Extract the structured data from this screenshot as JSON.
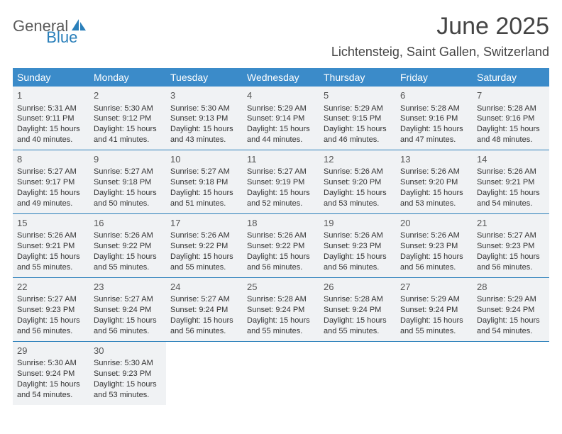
{
  "logo": {
    "t1": "General",
    "t2": "Blue"
  },
  "title": "June 2025",
  "location": "Lichtensteig, Saint Gallen, Switzerland",
  "colors": {
    "header_bg": "#3b8bc9",
    "cell_bg": "#f0f2f4",
    "rule": "#2a7fba",
    "logo_blue": "#2a7fba",
    "text_gray": "#5a5a5a"
  },
  "dow": [
    "Sunday",
    "Monday",
    "Tuesday",
    "Wednesday",
    "Thursday",
    "Friday",
    "Saturday"
  ],
  "weeks": [
    [
      {
        "n": "1",
        "sr": "Sunrise: 5:31 AM",
        "ss": "Sunset: 9:11 PM",
        "d1": "Daylight: 15 hours",
        "d2": "and 40 minutes."
      },
      {
        "n": "2",
        "sr": "Sunrise: 5:30 AM",
        "ss": "Sunset: 9:12 PM",
        "d1": "Daylight: 15 hours",
        "d2": "and 41 minutes."
      },
      {
        "n": "3",
        "sr": "Sunrise: 5:30 AM",
        "ss": "Sunset: 9:13 PM",
        "d1": "Daylight: 15 hours",
        "d2": "and 43 minutes."
      },
      {
        "n": "4",
        "sr": "Sunrise: 5:29 AM",
        "ss": "Sunset: 9:14 PM",
        "d1": "Daylight: 15 hours",
        "d2": "and 44 minutes."
      },
      {
        "n": "5",
        "sr": "Sunrise: 5:29 AM",
        "ss": "Sunset: 9:15 PM",
        "d1": "Daylight: 15 hours",
        "d2": "and 46 minutes."
      },
      {
        "n": "6",
        "sr": "Sunrise: 5:28 AM",
        "ss": "Sunset: 9:16 PM",
        "d1": "Daylight: 15 hours",
        "d2": "and 47 minutes."
      },
      {
        "n": "7",
        "sr": "Sunrise: 5:28 AM",
        "ss": "Sunset: 9:16 PM",
        "d1": "Daylight: 15 hours",
        "d2": "and 48 minutes."
      }
    ],
    [
      {
        "n": "8",
        "sr": "Sunrise: 5:27 AM",
        "ss": "Sunset: 9:17 PM",
        "d1": "Daylight: 15 hours",
        "d2": "and 49 minutes."
      },
      {
        "n": "9",
        "sr": "Sunrise: 5:27 AM",
        "ss": "Sunset: 9:18 PM",
        "d1": "Daylight: 15 hours",
        "d2": "and 50 minutes."
      },
      {
        "n": "10",
        "sr": "Sunrise: 5:27 AM",
        "ss": "Sunset: 9:18 PM",
        "d1": "Daylight: 15 hours",
        "d2": "and 51 minutes."
      },
      {
        "n": "11",
        "sr": "Sunrise: 5:27 AM",
        "ss": "Sunset: 9:19 PM",
        "d1": "Daylight: 15 hours",
        "d2": "and 52 minutes."
      },
      {
        "n": "12",
        "sr": "Sunrise: 5:26 AM",
        "ss": "Sunset: 9:20 PM",
        "d1": "Daylight: 15 hours",
        "d2": "and 53 minutes."
      },
      {
        "n": "13",
        "sr": "Sunrise: 5:26 AM",
        "ss": "Sunset: 9:20 PM",
        "d1": "Daylight: 15 hours",
        "d2": "and 53 minutes."
      },
      {
        "n": "14",
        "sr": "Sunrise: 5:26 AM",
        "ss": "Sunset: 9:21 PM",
        "d1": "Daylight: 15 hours",
        "d2": "and 54 minutes."
      }
    ],
    [
      {
        "n": "15",
        "sr": "Sunrise: 5:26 AM",
        "ss": "Sunset: 9:21 PM",
        "d1": "Daylight: 15 hours",
        "d2": "and 55 minutes."
      },
      {
        "n": "16",
        "sr": "Sunrise: 5:26 AM",
        "ss": "Sunset: 9:22 PM",
        "d1": "Daylight: 15 hours",
        "d2": "and 55 minutes."
      },
      {
        "n": "17",
        "sr": "Sunrise: 5:26 AM",
        "ss": "Sunset: 9:22 PM",
        "d1": "Daylight: 15 hours",
        "d2": "and 55 minutes."
      },
      {
        "n": "18",
        "sr": "Sunrise: 5:26 AM",
        "ss": "Sunset: 9:22 PM",
        "d1": "Daylight: 15 hours",
        "d2": "and 56 minutes."
      },
      {
        "n": "19",
        "sr": "Sunrise: 5:26 AM",
        "ss": "Sunset: 9:23 PM",
        "d1": "Daylight: 15 hours",
        "d2": "and 56 minutes."
      },
      {
        "n": "20",
        "sr": "Sunrise: 5:26 AM",
        "ss": "Sunset: 9:23 PM",
        "d1": "Daylight: 15 hours",
        "d2": "and 56 minutes."
      },
      {
        "n": "21",
        "sr": "Sunrise: 5:27 AM",
        "ss": "Sunset: 9:23 PM",
        "d1": "Daylight: 15 hours",
        "d2": "and 56 minutes."
      }
    ],
    [
      {
        "n": "22",
        "sr": "Sunrise: 5:27 AM",
        "ss": "Sunset: 9:23 PM",
        "d1": "Daylight: 15 hours",
        "d2": "and 56 minutes."
      },
      {
        "n": "23",
        "sr": "Sunrise: 5:27 AM",
        "ss": "Sunset: 9:24 PM",
        "d1": "Daylight: 15 hours",
        "d2": "and 56 minutes."
      },
      {
        "n": "24",
        "sr": "Sunrise: 5:27 AM",
        "ss": "Sunset: 9:24 PM",
        "d1": "Daylight: 15 hours",
        "d2": "and 56 minutes."
      },
      {
        "n": "25",
        "sr": "Sunrise: 5:28 AM",
        "ss": "Sunset: 9:24 PM",
        "d1": "Daylight: 15 hours",
        "d2": "and 55 minutes."
      },
      {
        "n": "26",
        "sr": "Sunrise: 5:28 AM",
        "ss": "Sunset: 9:24 PM",
        "d1": "Daylight: 15 hours",
        "d2": "and 55 minutes."
      },
      {
        "n": "27",
        "sr": "Sunrise: 5:29 AM",
        "ss": "Sunset: 9:24 PM",
        "d1": "Daylight: 15 hours",
        "d2": "and 55 minutes."
      },
      {
        "n": "28",
        "sr": "Sunrise: 5:29 AM",
        "ss": "Sunset: 9:24 PM",
        "d1": "Daylight: 15 hours",
        "d2": "and 54 minutes."
      }
    ],
    [
      {
        "n": "29",
        "sr": "Sunrise: 5:30 AM",
        "ss": "Sunset: 9:24 PM",
        "d1": "Daylight: 15 hours",
        "d2": "and 54 minutes."
      },
      {
        "n": "30",
        "sr": "Sunrise: 5:30 AM",
        "ss": "Sunset: 9:23 PM",
        "d1": "Daylight: 15 hours",
        "d2": "and 53 minutes."
      },
      null,
      null,
      null,
      null,
      null
    ]
  ]
}
